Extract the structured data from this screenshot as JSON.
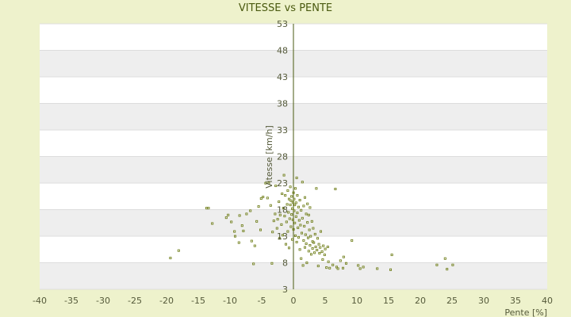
{
  "chart_data": {
    "type": "scatter",
    "title": "VITESSE vs PENTE",
    "xlabel": "Pente [%]",
    "ylabel": "Vitesse [km/h]",
    "xlim": [
      -40,
      40
    ],
    "ylim": [
      3,
      53
    ],
    "x_ticks": [
      "-40",
      "-35",
      "-30",
      "-25",
      "-20",
      "-15",
      "-10",
      "-5",
      "0",
      "5",
      "10",
      "15",
      "20",
      "25",
      "30",
      "35",
      "40"
    ],
    "y_ticks": [
      "3",
      "8",
      "13",
      "18",
      "23",
      "28",
      "33",
      "38",
      "43",
      "48",
      "53"
    ],
    "grid": true,
    "band_colors": [
      "#ffffff",
      "#eeeeee"
    ],
    "marker_color": "#6b7a12",
    "background": "#eef2cc",
    "points": [
      [
        -19.4,
        8.9
      ],
      [
        -18.1,
        10.3
      ],
      [
        -13.7,
        18.3
      ],
      [
        -13.4,
        18.3
      ],
      [
        -12.8,
        15.4
      ],
      [
        -10.6,
        16.5
      ],
      [
        -10.3,
        17.0
      ],
      [
        -9.8,
        15.7
      ],
      [
        -9.3,
        13.9
      ],
      [
        -9.2,
        13.0
      ],
      [
        -8.6,
        11.8
      ],
      [
        -8.5,
        16.9
      ],
      [
        -8.1,
        15.0
      ],
      [
        -7.9,
        14.0
      ],
      [
        -7.4,
        17.2
      ],
      [
        -6.8,
        17.8
      ],
      [
        -6.6,
        12.1
      ],
      [
        -6.3,
        7.8
      ],
      [
        -6.1,
        11.2
      ],
      [
        -5.8,
        15.8
      ],
      [
        -5.5,
        18.6
      ],
      [
        -5.2,
        14.2
      ],
      [
        -5.1,
        20.1
      ],
      [
        -4.8,
        20.4
      ],
      [
        -4.4,
        23.0
      ],
      [
        -4.1,
        20.2
      ],
      [
        -3.9,
        23.0
      ],
      [
        -3.6,
        18.8
      ],
      [
        -3.4,
        7.9
      ],
      [
        -3.3,
        13.8
      ],
      [
        -3.1,
        15.9
      ],
      [
        -2.9,
        17.2
      ],
      [
        -2.8,
        22.5
      ],
      [
        -2.6,
        14.5
      ],
      [
        -2.5,
        16.2
      ],
      [
        -2.3,
        19.5
      ],
      [
        -2.2,
        12.6
      ],
      [
        -2.1,
        17.0
      ],
      [
        -1.9,
        15.2
      ],
      [
        -1.8,
        21.0
      ],
      [
        -1.7,
        13.2
      ],
      [
        -1.6,
        18.3
      ],
      [
        -1.5,
        24.5
      ],
      [
        -1.4,
        16.8
      ],
      [
        -1.3,
        20.7
      ],
      [
        -1.2,
        11.5
      ],
      [
        -1.1,
        15.7
      ],
      [
        -1.0,
        19.0
      ],
      [
        -0.9,
        13.9
      ],
      [
        -0.9,
        21.6
      ],
      [
        -0.8,
        17.5
      ],
      [
        -0.7,
        20.0
      ],
      [
        -0.7,
        10.8
      ],
      [
        -0.6,
        16.3
      ],
      [
        -0.5,
        18.9
      ],
      [
        -0.5,
        22.3
      ],
      [
        -0.4,
        14.8
      ],
      [
        -0.4,
        19.7
      ],
      [
        -0.3,
        17.1
      ],
      [
        -0.3,
        20.5
      ],
      [
        -0.2,
        12.4
      ],
      [
        -0.2,
        18.2
      ],
      [
        -0.1,
        16.1
      ],
      [
        -0.1,
        19.4
      ],
      [
        0.0,
        21.2
      ],
      [
        0.0,
        14.3
      ],
      [
        0.1,
        17.8
      ],
      [
        0.1,
        20.0
      ],
      [
        0.2,
        15.5
      ],
      [
        0.2,
        18.9
      ],
      [
        0.3,
        13.1
      ],
      [
        0.3,
        22.0
      ],
      [
        0.4,
        16.7
      ],
      [
        0.4,
        19.3
      ],
      [
        0.5,
        24.0
      ],
      [
        0.5,
        11.9
      ],
      [
        0.6,
        17.4
      ],
      [
        0.6,
        20.7
      ],
      [
        0.7,
        14.6
      ],
      [
        0.8,
        18.5
      ],
      [
        0.8,
        12.8
      ],
      [
        0.9,
        16.0
      ],
      [
        1.0,
        19.8
      ],
      [
        1.0,
        10.5
      ],
      [
        1.1,
        15.1
      ],
      [
        1.2,
        17.9
      ],
      [
        1.2,
        8.8
      ],
      [
        1.3,
        13.6
      ],
      [
        1.4,
        23.2
      ],
      [
        1.4,
        16.4
      ],
      [
        1.5,
        7.5
      ],
      [
        1.6,
        12.2
      ],
      [
        1.6,
        18.7
      ],
      [
        1.7,
        14.9
      ],
      [
        1.8,
        10.9
      ],
      [
        1.8,
        20.3
      ],
      [
        1.9,
        13.3
      ],
      [
        2.0,
        17.2
      ],
      [
        2.0,
        11.6
      ],
      [
        2.1,
        8.0
      ],
      [
        2.2,
        15.6
      ],
      [
        2.2,
        19.1
      ],
      [
        2.3,
        12.7
      ],
      [
        2.4,
        10.2
      ],
      [
        2.4,
        17.0
      ],
      [
        2.5,
        14.2
      ],
      [
        2.6,
        11.3
      ],
      [
        2.6,
        18.4
      ],
      [
        2.7,
        13.0
      ],
      [
        2.8,
        9.6
      ],
      [
        2.9,
        15.8
      ],
      [
        3.0,
        12.0
      ],
      [
        3.0,
        10.7
      ],
      [
        3.1,
        14.5
      ],
      [
        3.2,
        11.8
      ],
      [
        3.3,
        9.9
      ],
      [
        3.4,
        13.4
      ],
      [
        3.5,
        11.0
      ],
      [
        3.6,
        22.0
      ],
      [
        3.7,
        10.4
      ],
      [
        3.8,
        12.6
      ],
      [
        3.9,
        7.4
      ],
      [
        4.0,
        11.5
      ],
      [
        4.1,
        9.8
      ],
      [
        4.2,
        10.9
      ],
      [
        4.3,
        13.9
      ],
      [
        4.5,
        10.1
      ],
      [
        4.6,
        8.6
      ],
      [
        4.7,
        11.2
      ],
      [
        4.9,
        9.5
      ],
      [
        5.0,
        10.6
      ],
      [
        5.2,
        7.1
      ],
      [
        5.4,
        11.0
      ],
      [
        5.5,
        8.2
      ],
      [
        5.7,
        7.0
      ],
      [
        6.2,
        7.6
      ],
      [
        6.6,
        21.9
      ],
      [
        6.8,
        7.2
      ],
      [
        7.0,
        6.9
      ],
      [
        7.4,
        8.4
      ],
      [
        7.8,
        7.0
      ],
      [
        7.9,
        9.1
      ],
      [
        8.3,
        7.9
      ],
      [
        9.2,
        12.2
      ],
      [
        10.2,
        7.5
      ],
      [
        10.5,
        6.9
      ],
      [
        11.0,
        7.2
      ],
      [
        13.2,
        6.9
      ],
      [
        15.3,
        6.7
      ],
      [
        15.5,
        9.5
      ],
      [
        22.6,
        7.6
      ],
      [
        23.9,
        8.8
      ],
      [
        24.2,
        6.8
      ],
      [
        25.1,
        7.6
      ]
    ]
  }
}
